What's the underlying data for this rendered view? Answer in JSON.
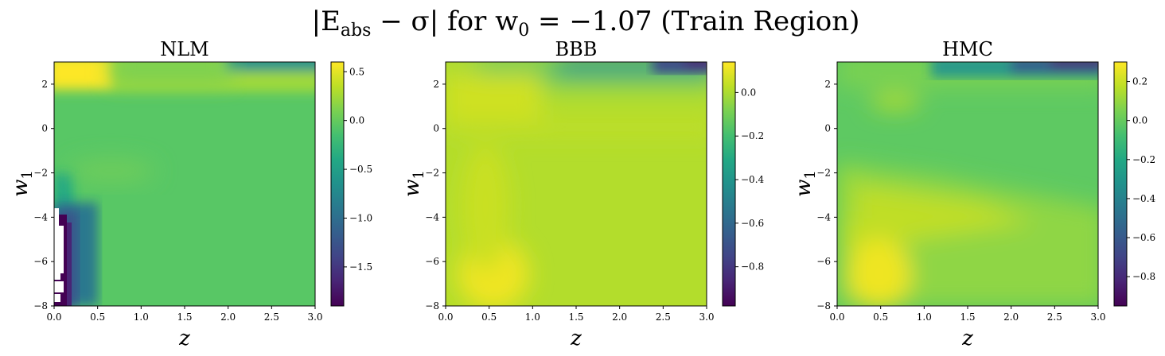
{
  "figure": {
    "suptitle_parts": [
      "|E",
      "abs",
      " − σ| for w",
      "0",
      " = −1.07 (Train Region)"
    ]
  },
  "chart_data": [
    {
      "type": "heatmap",
      "title": "NLM",
      "xlabel": "z",
      "ylabel_parts": [
        "w",
        "1"
      ],
      "xlim": [
        0.0,
        3.0
      ],
      "ylim": [
        -8,
        3
      ],
      "xticks": [
        "0.0",
        "0.5",
        "1.0",
        "1.5",
        "2.0",
        "2.5",
        "3.0"
      ],
      "xtick_values": [
        0,
        0.5,
        1,
        1.5,
        2,
        2.5,
        3
      ],
      "yticks": [
        "−8",
        "−6",
        "−4",
        "−2",
        "0",
        "2"
      ],
      "ytick_values": [
        -8,
        -6,
        -4,
        -2,
        0,
        2
      ],
      "colorbar": {
        "min": -1.9,
        "max": 0.6,
        "ticks": [
          "−1.5",
          "−1.0",
          "−0.5",
          "0.0",
          "0.5"
        ],
        "tick_values": [
          -1.5,
          -1.0,
          -0.5,
          0.0,
          0.5
        ]
      },
      "colormap": "viridis",
      "missing_data_region": "white gaps near z≈0.0–0.1, w1≈−7.8 to −3.6"
    },
    {
      "type": "heatmap",
      "title": "BBB",
      "xlabel": "z",
      "ylabel_parts": [
        "w",
        "1"
      ],
      "xlim": [
        0.0,
        3.0
      ],
      "ylim": [
        -8,
        3
      ],
      "xticks": [
        "0.0",
        "0.5",
        "1.0",
        "1.5",
        "2.0",
        "2.5",
        "3.0"
      ],
      "xtick_values": [
        0,
        0.5,
        1,
        1.5,
        2,
        2.5,
        3
      ],
      "yticks": [
        "−8",
        "−6",
        "−4",
        "−2",
        "0",
        "2"
      ],
      "ytick_values": [
        -8,
        -6,
        -4,
        -2,
        0,
        2
      ],
      "colorbar": {
        "min": -0.98,
        "max": 0.14,
        "ticks": [
          "−0.8",
          "−0.6",
          "−0.4",
          "−0.2",
          "0.0"
        ],
        "tick_values": [
          -0.8,
          -0.6,
          -0.4,
          -0.2,
          0.0
        ]
      },
      "colormap": "viridis"
    },
    {
      "type": "heatmap",
      "title": "HMC",
      "xlabel": "z",
      "ylabel_parts": [
        "w",
        "1"
      ],
      "xlim": [
        0.0,
        3.0
      ],
      "ylim": [
        -8,
        3
      ],
      "xticks": [
        "0.0",
        "0.5",
        "1.0",
        "1.5",
        "2.0",
        "2.5",
        "3.0"
      ],
      "xtick_values": [
        0,
        0.5,
        1,
        1.5,
        2,
        2.5,
        3
      ],
      "yticks": [
        "−8",
        "−6",
        "−4",
        "−2",
        "0",
        "2"
      ],
      "ytick_values": [
        -8,
        -6,
        -4,
        -2,
        0,
        2
      ],
      "colorbar": {
        "min": -0.95,
        "max": 0.3,
        "ticks": [
          "−0.8",
          "−0.6",
          "−0.4",
          "−0.2",
          "0.0",
          "0.2"
        ],
        "tick_values": [
          -0.8,
          -0.6,
          -0.4,
          -0.2,
          0.0,
          0.2
        ]
      },
      "colormap": "viridis"
    }
  ]
}
